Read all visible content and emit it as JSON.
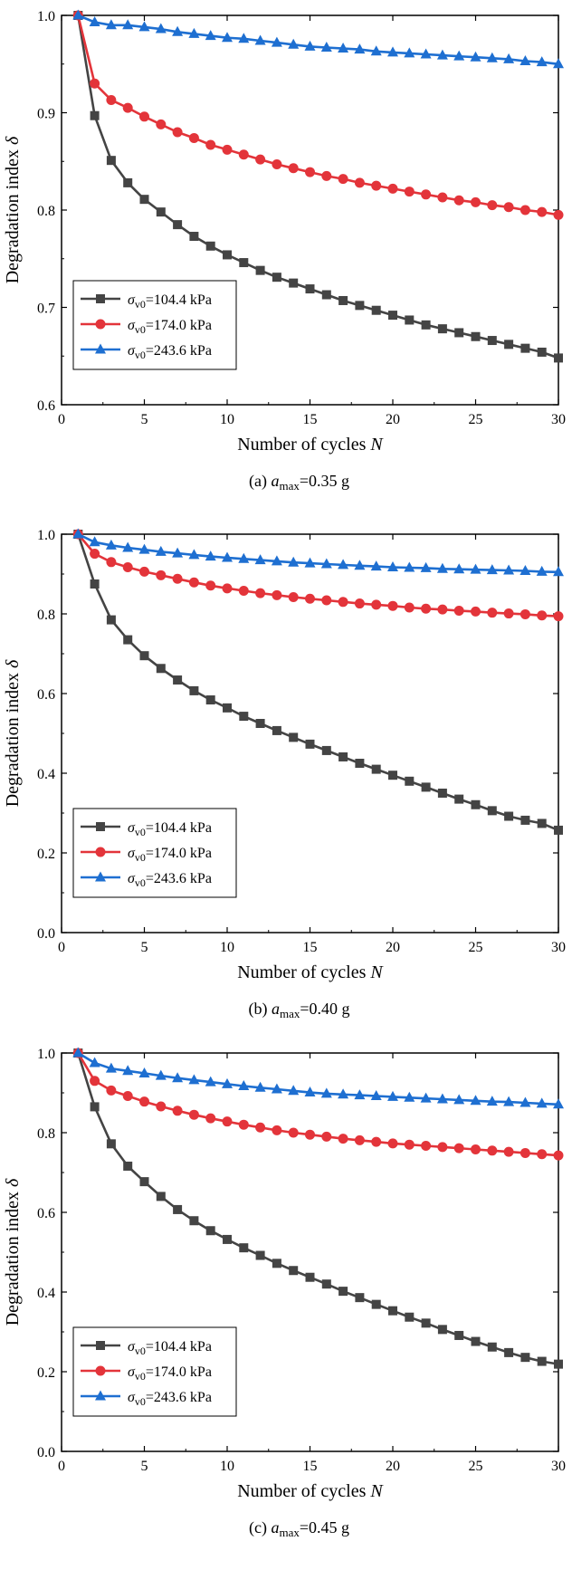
{
  "chart_data": [
    {
      "type": "line",
      "caption_prefix": "(a) ",
      "caption_var": "a",
      "caption_sub": "max",
      "caption_value": "=0.35 g",
      "xlabel": "Number of cycles ",
      "xlabel_var": "N",
      "ylabel": "Degradation index ",
      "ylabel_var": "δ",
      "xlim": [
        0,
        30
      ],
      "ylim": [
        0.6,
        1.0
      ],
      "xticks": [
        0,
        5,
        10,
        15,
        20,
        25,
        30
      ],
      "yticks": [
        0.6,
        0.7,
        0.8,
        0.9,
        1.0
      ],
      "ytick_labels": [
        "0.6",
        "0.7",
        "0.8",
        "0.9",
        "1.0"
      ],
      "legend": "bottom-left",
      "x": [
        1,
        2,
        3,
        4,
        5,
        6,
        7,
        8,
        9,
        10,
        11,
        12,
        13,
        14,
        15,
        16,
        17,
        18,
        19,
        20,
        21,
        22,
        23,
        24,
        25,
        26,
        27,
        28,
        29,
        30
      ],
      "series": [
        {
          "name": "σ'v0=104.4 kPa",
          "sigma": "σ",
          "sub": "v0",
          "value": "=104.4 kPa",
          "color": "#444444",
          "marker": "square",
          "values": [
            1.0,
            0.897,
            0.851,
            0.828,
            0.811,
            0.798,
            0.785,
            0.773,
            0.763,
            0.754,
            0.746,
            0.738,
            0.731,
            0.725,
            0.719,
            0.713,
            0.707,
            0.702,
            0.697,
            0.692,
            0.687,
            0.682,
            0.678,
            0.674,
            0.67,
            0.666,
            0.662,
            0.658,
            0.654,
            0.648
          ]
        },
        {
          "name": "σ'v0=174.0 kPa",
          "sigma": "σ",
          "sub": "v0",
          "value": "=174.0 kPa",
          "color": "#e3343a",
          "marker": "circle",
          "values": [
            1.0,
            0.93,
            0.913,
            0.905,
            0.896,
            0.888,
            0.88,
            0.874,
            0.867,
            0.862,
            0.857,
            0.852,
            0.847,
            0.843,
            0.839,
            0.835,
            0.832,
            0.828,
            0.825,
            0.822,
            0.819,
            0.816,
            0.813,
            0.81,
            0.808,
            0.805,
            0.803,
            0.8,
            0.798,
            0.795
          ]
        },
        {
          "name": "σ'v0=243.6 kPa",
          "sigma": "σ",
          "sub": "v0",
          "value": "=243.6 kPa",
          "color": "#1e6fd1",
          "marker": "triangle",
          "values": [
            1.0,
            0.993,
            0.99,
            0.99,
            0.988,
            0.986,
            0.983,
            0.981,
            0.979,
            0.977,
            0.976,
            0.974,
            0.972,
            0.97,
            0.968,
            0.967,
            0.966,
            0.965,
            0.963,
            0.962,
            0.961,
            0.96,
            0.959,
            0.958,
            0.957,
            0.956,
            0.955,
            0.953,
            0.952,
            0.95
          ]
        }
      ]
    },
    {
      "type": "line",
      "caption_prefix": "(b) ",
      "caption_var": "a",
      "caption_sub": "max",
      "caption_value": "=0.40 g",
      "xlabel": "Number of cycles ",
      "xlabel_var": "N",
      "ylabel": "Degradation index ",
      "ylabel_var": "δ",
      "xlim": [
        0,
        30
      ],
      "ylim": [
        0.0,
        1.0
      ],
      "xticks": [
        0,
        5,
        10,
        15,
        20,
        25,
        30
      ],
      "yticks": [
        0.0,
        0.2,
        0.4,
        0.6,
        0.8,
        1.0
      ],
      "ytick_labels": [
        "0.0",
        "0.2",
        "0.4",
        "0.6",
        "0.8",
        "1.0"
      ],
      "legend": "bottom-left",
      "x": [
        1,
        2,
        3,
        4,
        5,
        6,
        7,
        8,
        9,
        10,
        11,
        12,
        13,
        14,
        15,
        16,
        17,
        18,
        19,
        20,
        21,
        22,
        23,
        24,
        25,
        26,
        27,
        28,
        29,
        30
      ],
      "series": [
        {
          "name": "σ'v0=104.4 kPa",
          "sigma": "σ",
          "sub": "v0",
          "value": "=104.4 kPa",
          "color": "#444444",
          "marker": "square",
          "values": [
            1.0,
            0.875,
            0.785,
            0.735,
            0.695,
            0.663,
            0.634,
            0.607,
            0.584,
            0.564,
            0.543,
            0.525,
            0.507,
            0.49,
            0.473,
            0.457,
            0.441,
            0.425,
            0.41,
            0.395,
            0.38,
            0.365,
            0.35,
            0.335,
            0.321,
            0.306,
            0.292,
            0.282,
            0.274,
            0.257
          ]
        },
        {
          "name": "σ'v0=174.0 kPa",
          "sigma": "σ",
          "sub": "v0",
          "value": "=174.0 kPa",
          "color": "#e3343a",
          "marker": "circle",
          "values": [
            1.0,
            0.951,
            0.93,
            0.917,
            0.906,
            0.897,
            0.888,
            0.879,
            0.871,
            0.864,
            0.858,
            0.852,
            0.847,
            0.842,
            0.838,
            0.834,
            0.83,
            0.826,
            0.823,
            0.82,
            0.816,
            0.813,
            0.811,
            0.808,
            0.806,
            0.803,
            0.801,
            0.799,
            0.796,
            0.794
          ]
        },
        {
          "name": "σ'v0=243.6 kPa",
          "sigma": "σ",
          "sub": "v0",
          "value": "=243.6 kPa",
          "color": "#1e6fd1",
          "marker": "triangle",
          "values": [
            1.0,
            0.98,
            0.972,
            0.966,
            0.961,
            0.956,
            0.952,
            0.948,
            0.944,
            0.941,
            0.938,
            0.935,
            0.932,
            0.929,
            0.927,
            0.925,
            0.923,
            0.921,
            0.919,
            0.917,
            0.916,
            0.915,
            0.913,
            0.912,
            0.911,
            0.91,
            0.909,
            0.908,
            0.906,
            0.905
          ]
        }
      ]
    },
    {
      "type": "line",
      "caption_prefix": "(c) ",
      "caption_var": "a",
      "caption_sub": "max",
      "caption_value": "=0.45 g",
      "xlabel": "Number of cycles ",
      "xlabel_var": "N",
      "ylabel": "Degradation index ",
      "ylabel_var": "δ",
      "xlim": [
        0,
        30
      ],
      "ylim": [
        0.0,
        1.0
      ],
      "xticks": [
        0,
        5,
        10,
        15,
        20,
        25,
        30
      ],
      "yticks": [
        0.0,
        0.2,
        0.4,
        0.6,
        0.8,
        1.0
      ],
      "ytick_labels": [
        "0.0",
        "0.2",
        "0.4",
        "0.6",
        "0.8",
        "1.0"
      ],
      "legend": "bottom-left",
      "x": [
        1,
        2,
        3,
        4,
        5,
        6,
        7,
        8,
        9,
        10,
        11,
        12,
        13,
        14,
        15,
        16,
        17,
        18,
        19,
        20,
        21,
        22,
        23,
        24,
        25,
        26,
        27,
        28,
        29,
        30
      ],
      "series": [
        {
          "name": "σ'v0=104.4 kPa",
          "sigma": "σ",
          "sub": "v0",
          "value": "=104.4 kPa",
          "color": "#444444",
          "marker": "square",
          "values": [
            1.0,
            0.865,
            0.772,
            0.716,
            0.677,
            0.64,
            0.607,
            0.579,
            0.554,
            0.532,
            0.511,
            0.492,
            0.472,
            0.454,
            0.437,
            0.42,
            0.402,
            0.386,
            0.369,
            0.353,
            0.337,
            0.322,
            0.306,
            0.291,
            0.276,
            0.262,
            0.248,
            0.236,
            0.226,
            0.219
          ]
        },
        {
          "name": "σ'v0=174.0 kPa",
          "sigma": "σ",
          "sub": "v0",
          "value": "=174.0 kPa",
          "color": "#e3343a",
          "marker": "circle",
          "values": [
            1.0,
            0.93,
            0.906,
            0.892,
            0.878,
            0.866,
            0.855,
            0.845,
            0.836,
            0.828,
            0.82,
            0.813,
            0.806,
            0.8,
            0.795,
            0.79,
            0.785,
            0.781,
            0.777,
            0.773,
            0.77,
            0.767,
            0.764,
            0.761,
            0.758,
            0.755,
            0.752,
            0.749,
            0.746,
            0.743
          ]
        },
        {
          "name": "σ'v0=243.6 kPa",
          "sigma": "σ",
          "sub": "v0",
          "value": "=243.6 kPa",
          "color": "#1e6fd1",
          "marker": "triangle",
          "values": [
            1.0,
            0.975,
            0.961,
            0.955,
            0.949,
            0.943,
            0.937,
            0.932,
            0.927,
            0.922,
            0.917,
            0.913,
            0.909,
            0.905,
            0.901,
            0.898,
            0.896,
            0.894,
            0.892,
            0.89,
            0.888,
            0.886,
            0.884,
            0.882,
            0.88,
            0.878,
            0.877,
            0.875,
            0.873,
            0.871
          ]
        }
      ]
    }
  ]
}
